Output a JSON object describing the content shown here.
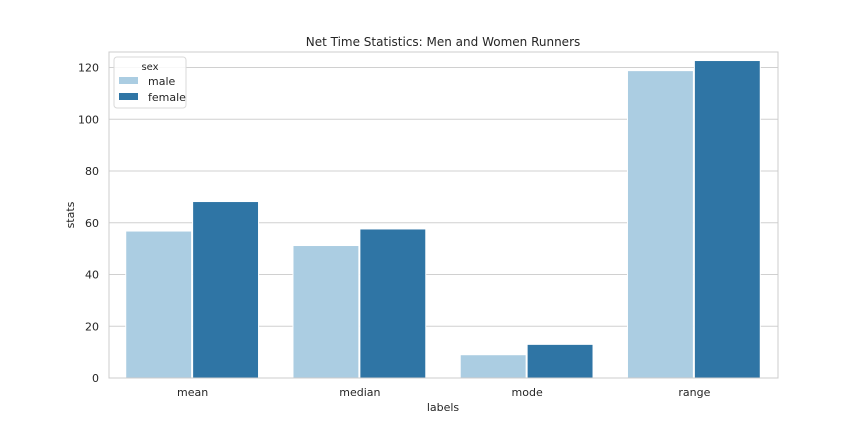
{
  "chart_data": {
    "type": "bar",
    "title": "Net Time Statistics: Men and Women Runners",
    "xlabel": "labels",
    "ylabel": "stats",
    "categories": [
      "mean",
      "median",
      "mode",
      "range"
    ],
    "series": [
      {
        "name": "male",
        "values": [
          56.8,
          51.2,
          9.0,
          118.8
        ],
        "color": "#abcde2"
      },
      {
        "name": "female",
        "values": [
          68.2,
          57.6,
          13.0,
          122.7
        ],
        "color": "#2f75a5"
      }
    ],
    "ylim": [
      0,
      126
    ],
    "yticks": [
      0,
      20,
      40,
      60,
      80,
      100,
      120
    ],
    "grid": true,
    "legend": {
      "title": "sex",
      "placement": "top-left"
    }
  }
}
